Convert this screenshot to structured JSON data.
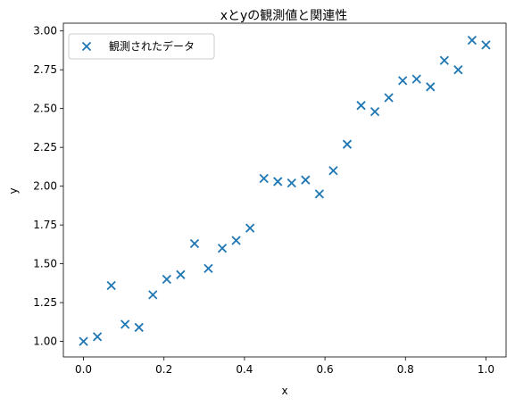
{
  "chart_data": {
    "type": "scatter",
    "title": "xとyの観測値と関連性",
    "xlabel": "x",
    "ylabel": "y",
    "xlim": [
      -0.05,
      1.05
    ],
    "ylim": [
      0.9,
      3.05
    ],
    "xticks": [
      0.0,
      0.2,
      0.4,
      0.6,
      0.8,
      1.0
    ],
    "xtick_labels": [
      "0.0",
      "0.2",
      "0.4",
      "0.6",
      "0.8",
      "1.0"
    ],
    "yticks": [
      1.0,
      1.25,
      1.5,
      1.75,
      2.0,
      2.25,
      2.5,
      2.75,
      3.0
    ],
    "ytick_labels": [
      "1.00",
      "1.25",
      "1.50",
      "1.75",
      "2.00",
      "2.25",
      "2.50",
      "2.75",
      "3.00"
    ],
    "grid": false,
    "legend_position": "top-left",
    "marker": "x",
    "color": "#1f77b4",
    "series": [
      {
        "name": "観測されたデータ",
        "x": [
          0.0,
          0.0345,
          0.069,
          0.1034,
          0.1379,
          0.1724,
          0.2069,
          0.2414,
          0.2759,
          0.3103,
          0.3448,
          0.3793,
          0.4138,
          0.4483,
          0.4828,
          0.5172,
          0.5517,
          0.5862,
          0.6207,
          0.6552,
          0.6897,
          0.7241,
          0.7586,
          0.7931,
          0.8276,
          0.8621,
          0.8966,
          0.931,
          0.9655,
          1.0
        ],
        "y": [
          1.0,
          1.03,
          1.36,
          1.11,
          1.09,
          1.3,
          1.4,
          1.43,
          1.63,
          1.47,
          1.6,
          1.65,
          1.73,
          2.05,
          2.03,
          2.02,
          2.04,
          1.95,
          2.1,
          2.27,
          2.52,
          2.48,
          2.57,
          2.68,
          2.69,
          2.64,
          2.81,
          2.75,
          2.94,
          2.91
        ]
      }
    ]
  }
}
